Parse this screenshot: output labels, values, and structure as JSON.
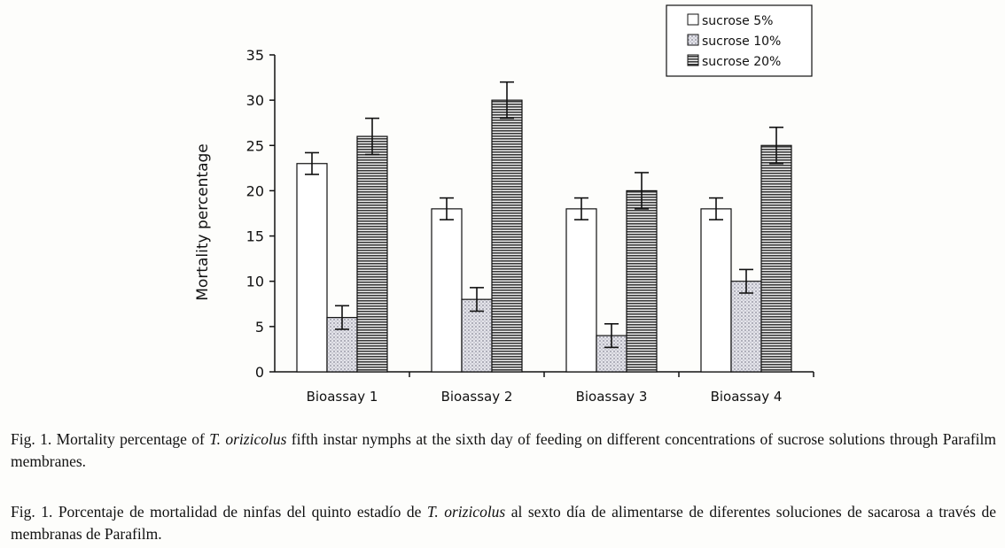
{
  "chart_data": {
    "type": "bar",
    "categories": [
      "Bioassay 1",
      "Bioassay 2",
      "Bioassay 3",
      "Bioassay 4"
    ],
    "series": [
      {
        "name": "sucrose 5%",
        "values": [
          23,
          18,
          18,
          18
        ],
        "errors": [
          1.2,
          1.2,
          1.2,
          1.2
        ],
        "fill": "white"
      },
      {
        "name": "sucrose 10%",
        "values": [
          6,
          8,
          4,
          10
        ],
        "errors": [
          1.3,
          1.3,
          1.3,
          1.3
        ],
        "fill": "dots"
      },
      {
        "name": "sucrose 20%",
        "values": [
          26,
          30,
          20,
          25
        ],
        "errors": [
          2,
          2,
          2,
          2
        ],
        "fill": "stripes"
      }
    ],
    "ylabel": "Mortality percentage",
    "ylim": [
      0,
      35
    ],
    "yticks": [
      0,
      5,
      10,
      15,
      20,
      25,
      30,
      35
    ],
    "legend_position": "top-right",
    "grid": false
  },
  "captions": {
    "en": {
      "before": "Fig. 1. Mortality percentage of ",
      "species": "T. orizicolus",
      "after": " fifth instar nymphs at the sixth day of feeding on different concentrations of sucrose solutions through Parafilm membranes."
    },
    "es": {
      "before": "Fig. 1. Porcentaje de mortalidad de ninfas del quinto estadío de ",
      "species": "T. orizicolus",
      "after": " al sexto día de alimentarse de diferentes soluciones de sacarosa a través de membranas de Parafilm."
    }
  }
}
